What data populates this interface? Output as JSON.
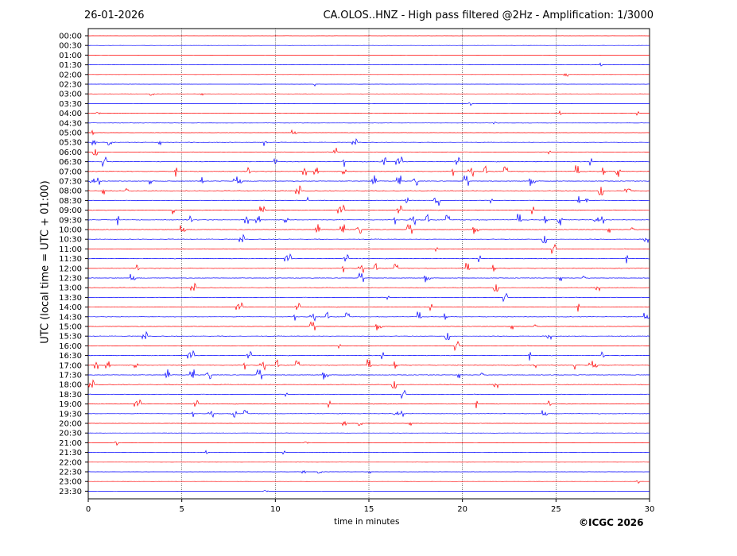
{
  "header": {
    "date": "26-01-2026",
    "title": "CA.OLOS..HNZ - High pass filtered @2Hz - Amplification: 1/3000"
  },
  "footer": {
    "copyright": "©ICGC 2026"
  },
  "chart_data": {
    "type": "line",
    "title": "CA.OLOS..HNZ - High pass filtered @2Hz - Amplification: 1/3000",
    "xlabel": "time in minutes",
    "ylabel": "UTC (local time = UTC + 01:00)",
    "xlim": [
      0,
      30
    ],
    "xticks": [
      0,
      5,
      10,
      15,
      20,
      25,
      30
    ],
    "grid_x": [
      5,
      10,
      15,
      20,
      25
    ],
    "rows": [
      "00:00",
      "00:30",
      "01:00",
      "01:30",
      "02:00",
      "02:30",
      "03:00",
      "03:30",
      "04:00",
      "04:30",
      "05:00",
      "05:30",
      "06:00",
      "06:30",
      "07:00",
      "07:30",
      "08:00",
      "08:30",
      "09:00",
      "09:30",
      "10:00",
      "10:30",
      "11:00",
      "11:30",
      "12:00",
      "12:30",
      "13:00",
      "13:30",
      "14:00",
      "14:30",
      "15:00",
      "15:30",
      "16:00",
      "16:30",
      "17:00",
      "17:30",
      "18:00",
      "18:30",
      "19:00",
      "19:30",
      "20:00",
      "20:30",
      "21:00",
      "21:30",
      "22:00",
      "22:30",
      "23:00",
      "23:30"
    ],
    "trace_colors": [
      "#ff0000",
      "#0000ff"
    ],
    "activity": [
      0.05,
      0.05,
      0.05,
      0.1,
      0.05,
      0.1,
      0.1,
      0.05,
      0.2,
      0.25,
      0.3,
      0.5,
      0.6,
      0.85,
      0.9,
      0.9,
      1.0,
      0.95,
      0.9,
      0.9,
      0.8,
      0.8,
      0.8,
      0.75,
      0.75,
      0.75,
      0.75,
      0.7,
      0.7,
      0.7,
      0.7,
      0.75,
      0.8,
      0.8,
      0.85,
      0.85,
      0.8,
      0.7,
      0.65,
      0.55,
      0.35,
      0.25,
      0.2,
      0.15,
      0.05,
      0.1,
      0.05,
      0.05
    ]
  }
}
